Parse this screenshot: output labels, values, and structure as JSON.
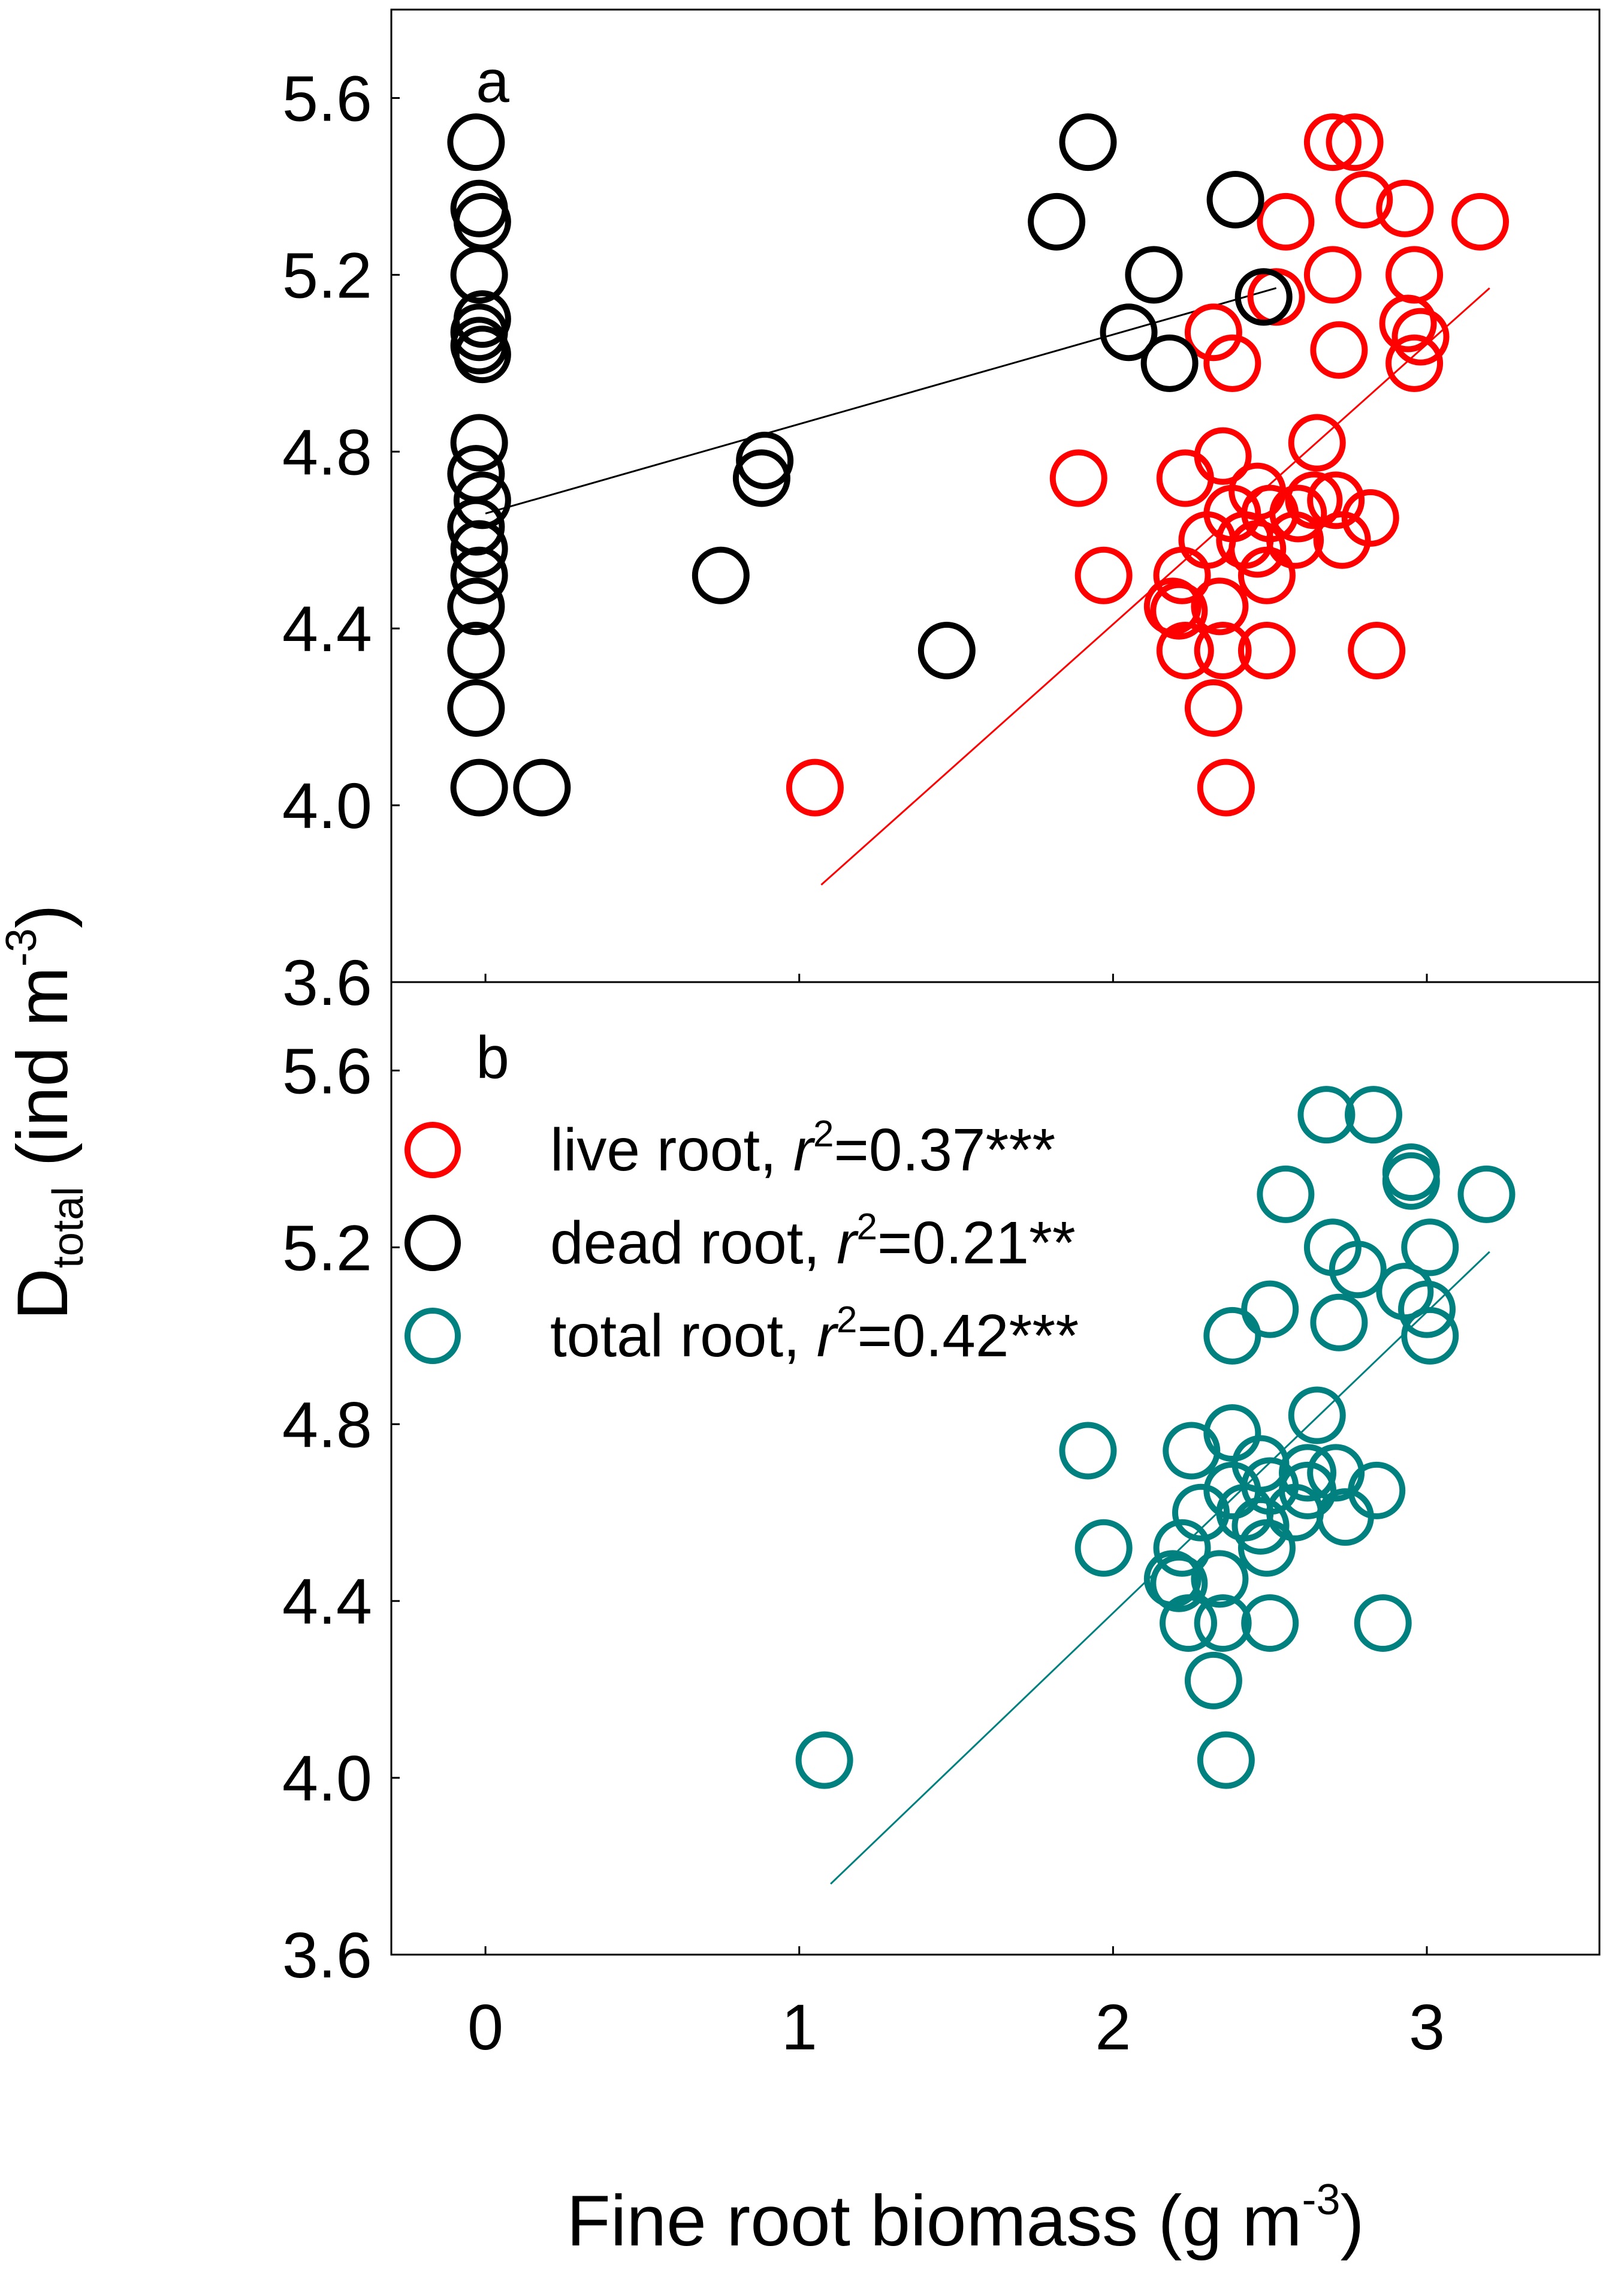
{
  "chart_data": [
    {
      "panel": "a",
      "type": "scatter",
      "xlabel": "Fine root biomass (g m-3)",
      "ylabel": "Dtotal (ind m-3)",
      "xlim": [
        -0.3,
        3.55
      ],
      "ylim": [
        3.6,
        5.8
      ],
      "xticks": [
        "0",
        "1",
        "2",
        "3"
      ],
      "yticks": [
        "3.6",
        "4.0",
        "4.4",
        "4.8",
        "5.2",
        "5.6"
      ],
      "marker": "open-circle",
      "series": [
        {
          "name": "live root",
          "color": "#ff0000",
          "fit": {
            "x0": 1.07,
            "y0": 3.82,
            "x1": 3.2,
            "y1": 5.17
          },
          "points": [
            [
              2.7,
              5.5
            ],
            [
              2.77,
              5.5
            ],
            [
              2.55,
              5.32
            ],
            [
              2.8,
              5.37
            ],
            [
              2.93,
              5.35
            ],
            [
              3.17,
              5.32
            ],
            [
              2.7,
              5.2
            ],
            [
              2.96,
              5.2
            ],
            [
              2.52,
              5.15
            ],
            [
              2.32,
              5.07
            ],
            [
              2.94,
              5.09
            ],
            [
              2.98,
              5.06
            ],
            [
              2.72,
              5.03
            ],
            [
              2.38,
              5.0
            ],
            [
              2.96,
              5.0
            ],
            [
              2.65,
              4.82
            ],
            [
              1.89,
              4.74
            ],
            [
              2.23,
              4.74
            ],
            [
              2.35,
              4.79
            ],
            [
              2.46,
              4.71
            ],
            [
              2.64,
              4.69
            ],
            [
              2.71,
              4.69
            ],
            [
              2.38,
              4.66
            ],
            [
              2.5,
              4.66
            ],
            [
              2.59,
              4.66
            ],
            [
              2.82,
              4.65
            ],
            [
              2.3,
              4.6
            ],
            [
              2.42,
              4.6
            ],
            [
              2.58,
              4.6
            ],
            [
              2.73,
              4.6
            ],
            [
              2.46,
              4.58
            ],
            [
              2.49,
              4.52
            ],
            [
              1.97,
              4.52
            ],
            [
              2.22,
              4.52
            ],
            [
              2.19,
              4.45
            ],
            [
              2.21,
              4.44
            ],
            [
              2.34,
              4.45
            ],
            [
              2.23,
              4.35
            ],
            [
              2.35,
              4.35
            ],
            [
              2.49,
              4.35
            ],
            [
              2.84,
              4.35
            ],
            [
              2.32,
              4.22
            ],
            [
              1.05,
              4.04
            ],
            [
              2.36,
              4.04
            ]
          ]
        },
        {
          "name": "dead root",
          "color": "#000000",
          "fit": {
            "x0": 0.0,
            "y0": 4.66,
            "x1": 2.52,
            "y1": 5.17
          },
          "points": [
            [
              -0.03,
              5.5
            ],
            [
              1.92,
              5.5
            ],
            [
              -0.02,
              5.35
            ],
            [
              -0.01,
              5.32
            ],
            [
              2.39,
              5.37
            ],
            [
              1.82,
              5.32
            ],
            [
              -0.02,
              5.2
            ],
            [
              2.13,
              5.2
            ],
            [
              2.48,
              5.15
            ],
            [
              -0.01,
              5.1
            ],
            [
              -0.02,
              5.07
            ],
            [
              2.05,
              5.07
            ],
            [
              -0.02,
              5.04
            ],
            [
              -0.01,
              5.02
            ],
            [
              2.18,
              5.0
            ],
            [
              -0.02,
              4.82
            ],
            [
              -0.03,
              4.75
            ],
            [
              0.89,
              4.78
            ],
            [
              0.88,
              4.74
            ],
            [
              -0.01,
              4.69
            ],
            [
              -0.03,
              4.63
            ],
            [
              -0.02,
              4.58
            ],
            [
              -0.02,
              4.52
            ],
            [
              0.75,
              4.52
            ],
            [
              -0.03,
              4.45
            ],
            [
              -0.03,
              4.35
            ],
            [
              1.47,
              4.35
            ],
            [
              -0.03,
              4.22
            ],
            [
              -0.02,
              4.04
            ],
            [
              0.18,
              4.04
            ]
          ]
        }
      ]
    },
    {
      "panel": "b",
      "type": "scatter",
      "xlabel": "Fine root biomass (g m-3)",
      "ylabel": "Dtotal (ind m-3)",
      "xlim": [
        -0.3,
        3.55
      ],
      "ylim": [
        3.6,
        5.8
      ],
      "xticks": [
        "0",
        "1",
        "2",
        "3"
      ],
      "yticks": [
        "3.6",
        "4.0",
        "4.4",
        "4.8",
        "5.2",
        "5.6"
      ],
      "marker": "open-circle",
      "series": [
        {
          "name": "total root",
          "color": "#00807f",
          "fit": {
            "x0": 1.1,
            "y0": 3.76,
            "x1": 3.2,
            "y1": 5.19
          },
          "points": [
            [
              2.68,
              5.5
            ],
            [
              2.83,
              5.5
            ],
            [
              2.95,
              5.37
            ],
            [
              2.95,
              5.35
            ],
            [
              2.55,
              5.32
            ],
            [
              3.19,
              5.32
            ],
            [
              2.7,
              5.2
            ],
            [
              3.01,
              5.2
            ],
            [
              2.78,
              5.15
            ],
            [
              2.93,
              5.1
            ],
            [
              2.5,
              5.06
            ],
            [
              3.0,
              5.06
            ],
            [
              2.72,
              5.03
            ],
            [
              2.38,
              5.0
            ],
            [
              3.01,
              5.0
            ],
            [
              2.65,
              4.82
            ],
            [
              1.92,
              4.74
            ],
            [
              2.25,
              4.74
            ],
            [
              2.38,
              4.78
            ],
            [
              2.47,
              4.71
            ],
            [
              2.62,
              4.69
            ],
            [
              2.71,
              4.69
            ],
            [
              2.38,
              4.65
            ],
            [
              2.5,
              4.66
            ],
            [
              2.62,
              4.65
            ],
            [
              2.84,
              4.65
            ],
            [
              2.28,
              4.6
            ],
            [
              2.42,
              4.6
            ],
            [
              2.58,
              4.6
            ],
            [
              2.74,
              4.59
            ],
            [
              2.47,
              4.57
            ],
            [
              2.49,
              4.52
            ],
            [
              1.97,
              4.52
            ],
            [
              2.22,
              4.52
            ],
            [
              2.19,
              4.45
            ],
            [
              2.21,
              4.44
            ],
            [
              2.34,
              4.45
            ],
            [
              2.24,
              4.35
            ],
            [
              2.35,
              4.35
            ],
            [
              2.5,
              4.35
            ],
            [
              2.86,
              4.35
            ],
            [
              2.32,
              4.22
            ],
            [
              1.08,
              4.04
            ],
            [
              2.36,
              4.04
            ]
          ]
        }
      ]
    }
  ],
  "legend": [
    {
      "series": "live root",
      "color": "#ff0000",
      "text": "live root, ",
      "r2_symbol": "r",
      "r2_exp": "2",
      "r2_value": "=0.37***"
    },
    {
      "series": "dead root",
      "color": "#000000",
      "text": "dead root, ",
      "r2_symbol": "r",
      "r2_exp": "2",
      "r2_value": "=0.21**"
    },
    {
      "series": "total root",
      "color": "#00807f",
      "text": "total root, ",
      "r2_symbol": "r",
      "r2_exp": "2",
      "r2_value": "=0.42***"
    }
  ],
  "labels": {
    "panel_a": "a",
    "panel_b": "b",
    "xlabel_main": "Fine root biomass (g m",
    "xlabel_exp": "-3",
    "xlabel_close": ")",
    "ylabel_main": "D",
    "ylabel_sub": "total",
    "ylabel_mid": " (ind m",
    "ylabel_exp": "-3",
    "ylabel_close": ")"
  }
}
